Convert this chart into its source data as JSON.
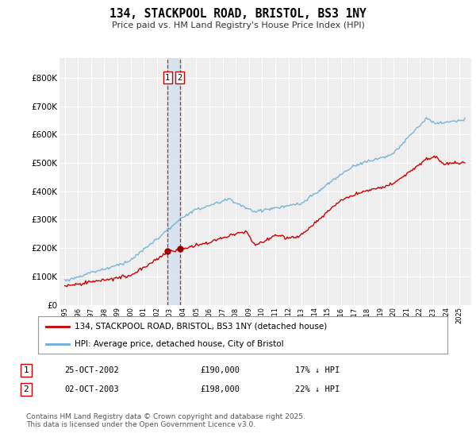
{
  "title": "134, STACKPOOL ROAD, BRISTOL, BS3 1NY",
  "subtitle": "Price paid vs. HM Land Registry's House Price Index (HPI)",
  "hpi_color": "#6baed6",
  "property_color": "#cc0000",
  "dashed_line_color": "#cc0000",
  "shade_color": "#c6dbef",
  "legend_label_property": "134, STACKPOOL ROAD, BRISTOL, BS3 1NY (detached house)",
  "legend_label_hpi": "HPI: Average price, detached house, City of Bristol",
  "annotation1_label": "1",
  "annotation1_date": "25-OCT-2002",
  "annotation1_price": "£190,000",
  "annotation1_hpi": "17% ↓ HPI",
  "annotation2_label": "2",
  "annotation2_date": "02-OCT-2003",
  "annotation2_price": "£198,000",
  "annotation2_hpi": "22% ↓ HPI",
  "footer": "Contains HM Land Registry data © Crown copyright and database right 2025.\nThis data is licensed under the Open Government Licence v3.0.",
  "ylim": [
    0,
    870000
  ],
  "yticks": [
    0,
    100000,
    200000,
    300000,
    400000,
    500000,
    600000,
    700000,
    800000
  ],
  "purchase_dates": [
    2002.82,
    2003.75
  ],
  "purchase_prices": [
    190000,
    198000
  ],
  "purchase_x_labels": [
    "1",
    "2"
  ],
  "background_color": "#eeeeee"
}
